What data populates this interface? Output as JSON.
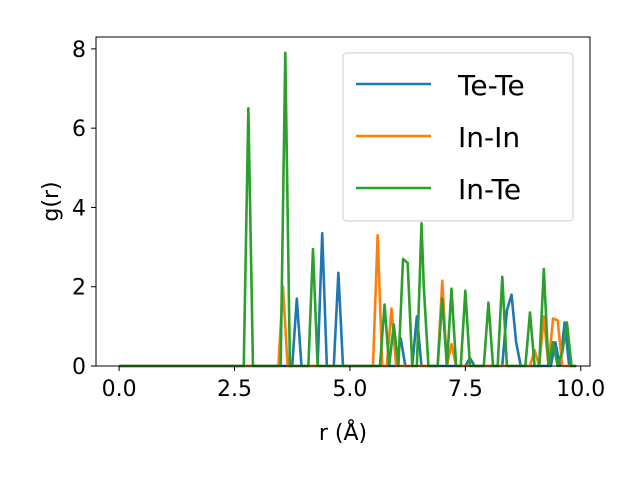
{
  "chart_data": {
    "type": "line",
    "xlabel": "r (Å)",
    "ylabel": "g(r)",
    "xlim": [
      -0.5,
      10.2
    ],
    "ylim": [
      0,
      8.3
    ],
    "xticks": [
      0,
      2.5,
      5,
      7.5,
      10
    ],
    "xtick_labels": [
      "0.0",
      "2.5",
      "5.0",
      "7.5",
      "10.0"
    ],
    "yticks": [
      0,
      2,
      4,
      6,
      8
    ],
    "ytick_labels": [
      "0",
      "2",
      "4",
      "6",
      "8"
    ],
    "grid": false,
    "legend_position": "top-right",
    "series": [
      {
        "name": "Te-Te",
        "color": "#1f77b4",
        "x": [
          0,
          3.75,
          3.85,
          3.95,
          4.15,
          4.3,
          4.4,
          4.5,
          4.55,
          4.65,
          4.75,
          4.85,
          6.0,
          6.1,
          6.2,
          6.35,
          6.45,
          6.55,
          7.5,
          7.6,
          7.7,
          8.3,
          8.4,
          8.5,
          8.6,
          8.7,
          9.35,
          9.45,
          9.55,
          9.65,
          9.75,
          9.85,
          9.9
        ],
        "y": [
          0,
          0,
          1.7,
          0,
          0,
          0,
          3.35,
          0,
          0,
          0,
          2.35,
          0,
          0,
          0.7,
          0,
          0,
          1.25,
          0,
          0,
          0.2,
          0,
          0,
          1.4,
          1.8,
          0.6,
          0,
          0,
          0.6,
          0,
          1.1,
          0,
          0,
          0
        ]
      },
      {
        "name": "In-In",
        "color": "#ff7f0e",
        "x": [
          0,
          3.45,
          3.55,
          3.65,
          5.5,
          5.6,
          5.7,
          5.8,
          5.9,
          6.0,
          6.9,
          7.0,
          7.1,
          7.2,
          7.3,
          8.6,
          8.9,
          9.0,
          9.1,
          9.2,
          9.3,
          9.4,
          9.5,
          9.6,
          9.7,
          9.8
        ],
        "y": [
          0,
          0,
          2.0,
          0,
          0,
          3.3,
          0,
          0,
          1.45,
          0,
          0,
          2.15,
          0,
          0.55,
          0,
          0,
          0,
          0.4,
          0,
          1.25,
          0,
          1.2,
          1.15,
          0,
          0,
          0
        ]
      },
      {
        "name": "In-Te",
        "color": "#2ca02c",
        "x": [
          0,
          2.7,
          2.8,
          2.9,
          3.5,
          3.6,
          3.7,
          4.1,
          4.2,
          4.3,
          5.65,
          5.75,
          5.85,
          5.95,
          6.05,
          6.15,
          6.25,
          6.35,
          6.45,
          6.55,
          6.6,
          6.7,
          6.8,
          6.9,
          7.0,
          7.1,
          7.2,
          7.3,
          7.4,
          7.5,
          7.6,
          7.7,
          7.8,
          7.9,
          8.0,
          8.1,
          8.2,
          8.3,
          8.4,
          8.5,
          8.6,
          8.7,
          8.8,
          8.9,
          9.0,
          9.1,
          9.2,
          9.3,
          9.4,
          9.5,
          9.6,
          9.7,
          9.8,
          9.9
        ],
        "y": [
          0,
          0,
          6.5,
          0,
          0,
          7.9,
          0,
          0,
          2.95,
          0,
          0,
          1.55,
          0,
          1.05,
          0,
          2.7,
          2.6,
          0,
          0,
          3.6,
          2.0,
          0,
          0,
          0,
          1.7,
          0,
          1.95,
          0,
          0,
          1.9,
          0,
          0,
          0,
          0,
          1.6,
          0,
          0,
          2.25,
          0,
          0,
          0,
          0,
          0,
          1.35,
          0,
          0,
          2.45,
          0,
          0.6,
          0,
          0.35,
          1.1,
          0,
          0
        ]
      }
    ]
  }
}
